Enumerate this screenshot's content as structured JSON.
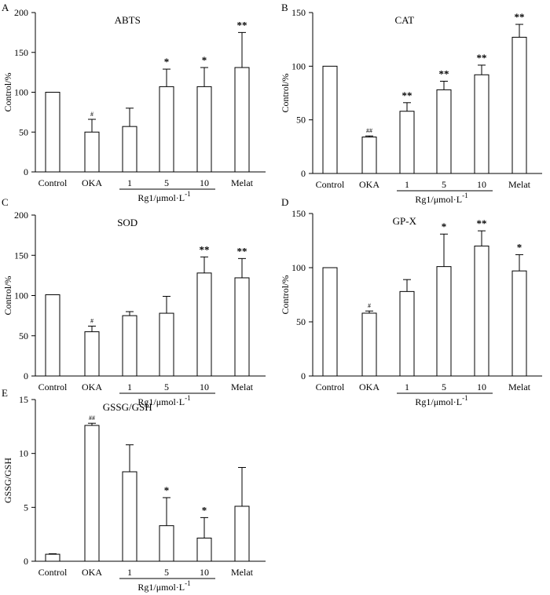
{
  "chart_data": [
    {
      "id": "A",
      "panel_label": "A",
      "type": "bar",
      "title": "ABTS",
      "ylabel": "Control/%",
      "xlabel": "",
      "ylim": [
        0,
        200
      ],
      "yticks": [
        0,
        50,
        100,
        150,
        200
      ],
      "categories": [
        "Control",
        "OKA",
        "1",
        "5",
        "10",
        "Melat"
      ],
      "values": [
        100,
        50,
        57,
        107,
        107,
        131
      ],
      "errors": [
        0,
        16,
        23,
        22,
        24,
        44
      ],
      "significance": [
        "",
        "#",
        "",
        "*",
        "*",
        "**"
      ],
      "group_label": "Rg1/μmol·L",
      "group_label_sup": "-1"
    },
    {
      "id": "B",
      "panel_label": "B",
      "type": "bar",
      "title": "CAT",
      "ylabel": "Control/%",
      "xlabel": "",
      "ylim": [
        0,
        150
      ],
      "yticks": [
        0,
        50,
        100,
        150
      ],
      "categories": [
        "Control",
        "OKA",
        "1",
        "5",
        "10",
        "Melat"
      ],
      "values": [
        100,
        34,
        58,
        78,
        92,
        127
      ],
      "errors": [
        0,
        1,
        8,
        8,
        9,
        12
      ],
      "significance": [
        "",
        "##",
        "**",
        "**",
        "**",
        "**"
      ],
      "group_label": "Rg1/μmol·L",
      "group_label_sup": "-1"
    },
    {
      "id": "C",
      "panel_label": "C",
      "type": "bar",
      "title": "SOD",
      "ylabel": "Control/%",
      "xlabel": "",
      "ylim": [
        0,
        200
      ],
      "yticks": [
        0,
        50,
        100,
        150,
        200
      ],
      "categories": [
        "Control",
        "OKA",
        "1",
        "5",
        "10",
        "Melat"
      ],
      "values": [
        101,
        55,
        75,
        78,
        128,
        122
      ],
      "errors": [
        0,
        7,
        5,
        21,
        20,
        24
      ],
      "significance": [
        "",
        "#",
        "",
        "",
        "**",
        "**"
      ],
      "group_label": "Rg1/μmol·L",
      "group_label_sup": "-1"
    },
    {
      "id": "D",
      "panel_label": "D",
      "type": "bar",
      "title": "GP-X",
      "ylabel": "Control/%",
      "xlabel": "",
      "ylim": [
        0,
        150
      ],
      "yticks": [
        0,
        50,
        100,
        150
      ],
      "categories": [
        "Control",
        "OKA",
        "1",
        "5",
        "10",
        "Melat"
      ],
      "values": [
        100,
        58,
        78,
        101,
        120,
        97
      ],
      "errors": [
        0,
        2,
        11,
        30,
        14,
        15
      ],
      "significance": [
        "",
        "#",
        "",
        "*",
        "**",
        "*"
      ],
      "group_label": "Rg1/μmol·L",
      "group_label_sup": "-1"
    },
    {
      "id": "E",
      "panel_label": "E",
      "type": "bar",
      "title": "GSSG/GSH",
      "ylabel": "GSSG/GSH",
      "xlabel": "",
      "ylim": [
        0,
        15
      ],
      "yticks": [
        0,
        5,
        10,
        15
      ],
      "categories": [
        "Control",
        "OKA",
        "1",
        "5",
        "10",
        "Melat"
      ],
      "values": [
        0.65,
        12.6,
        8.3,
        3.3,
        2.15,
        5.1
      ],
      "errors": [
        0.05,
        0.2,
        2.5,
        2.6,
        1.9,
        3.6
      ],
      "significance": [
        "",
        "##",
        "",
        "*",
        "*",
        ""
      ],
      "group_label": "Rg1/μmol·L",
      "group_label_sup": "-1"
    }
  ]
}
